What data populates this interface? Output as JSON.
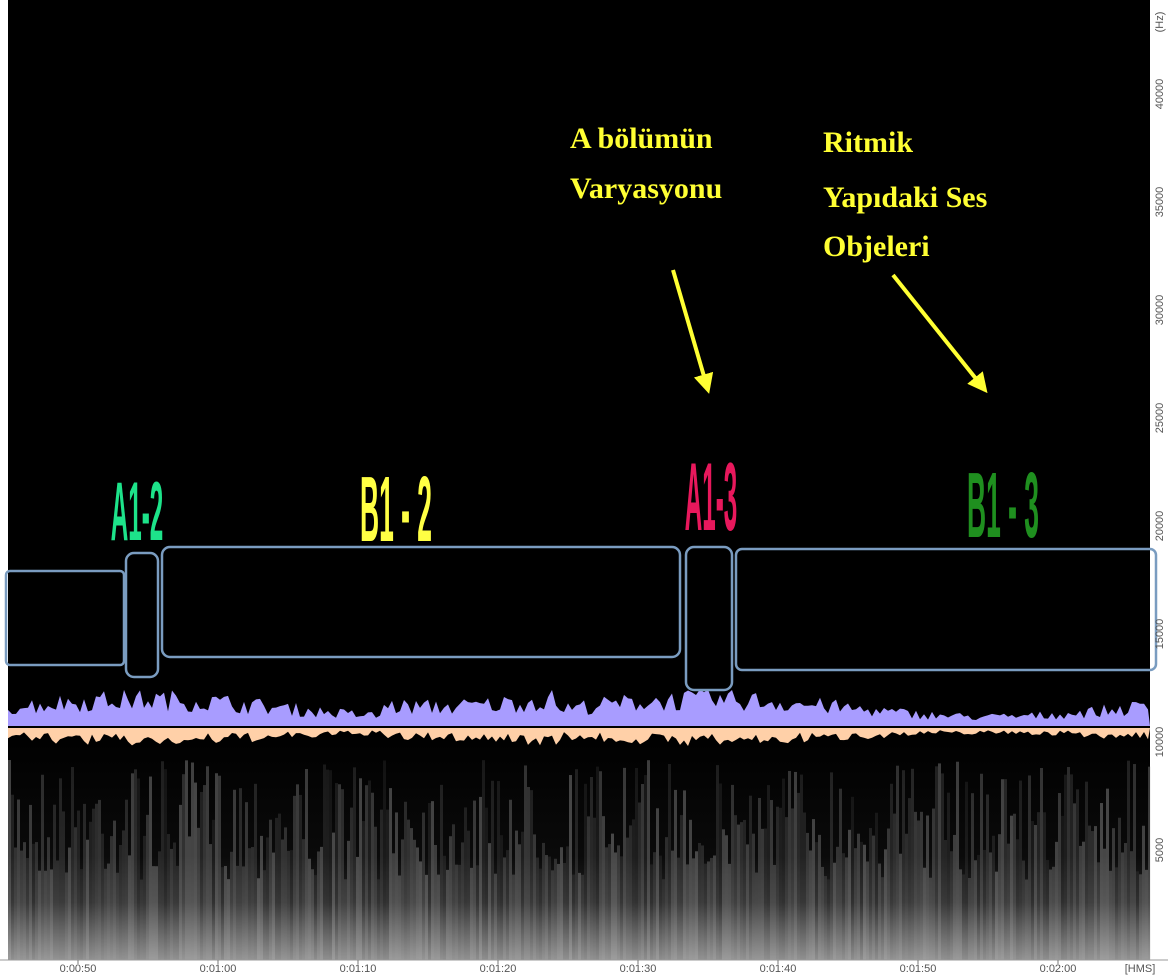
{
  "frequency_axis": {
    "unit": "(Hz)",
    "ticks": [
      "5000",
      "10000",
      "15000",
      "20000",
      "25000",
      "30000",
      "35000",
      "40000"
    ]
  },
  "time_axis": {
    "ticks": [
      "0:00:50",
      "0:01:00",
      "0:01:10",
      "0:01:20",
      "0:01:30",
      "0:01:40",
      "0:01:50",
      "0:02:00"
    ],
    "unit": "[HMS]"
  },
  "segments": [
    {
      "label": "A1-2",
      "color": "#1de38a"
    },
    {
      "label": "B1 - 2",
      "color": "#ffff44"
    },
    {
      "label": "A1-3",
      "color": "#e8185c"
    },
    {
      "label": "B1 - 3",
      "color": "#1f8f1f"
    }
  ],
  "annotations": [
    {
      "lines": [
        "A bölümün",
        "Varyasyonu"
      ]
    },
    {
      "lines": [
        "Ritmik",
        "Yapıdaki Ses",
        "Objeleri"
      ]
    }
  ]
}
